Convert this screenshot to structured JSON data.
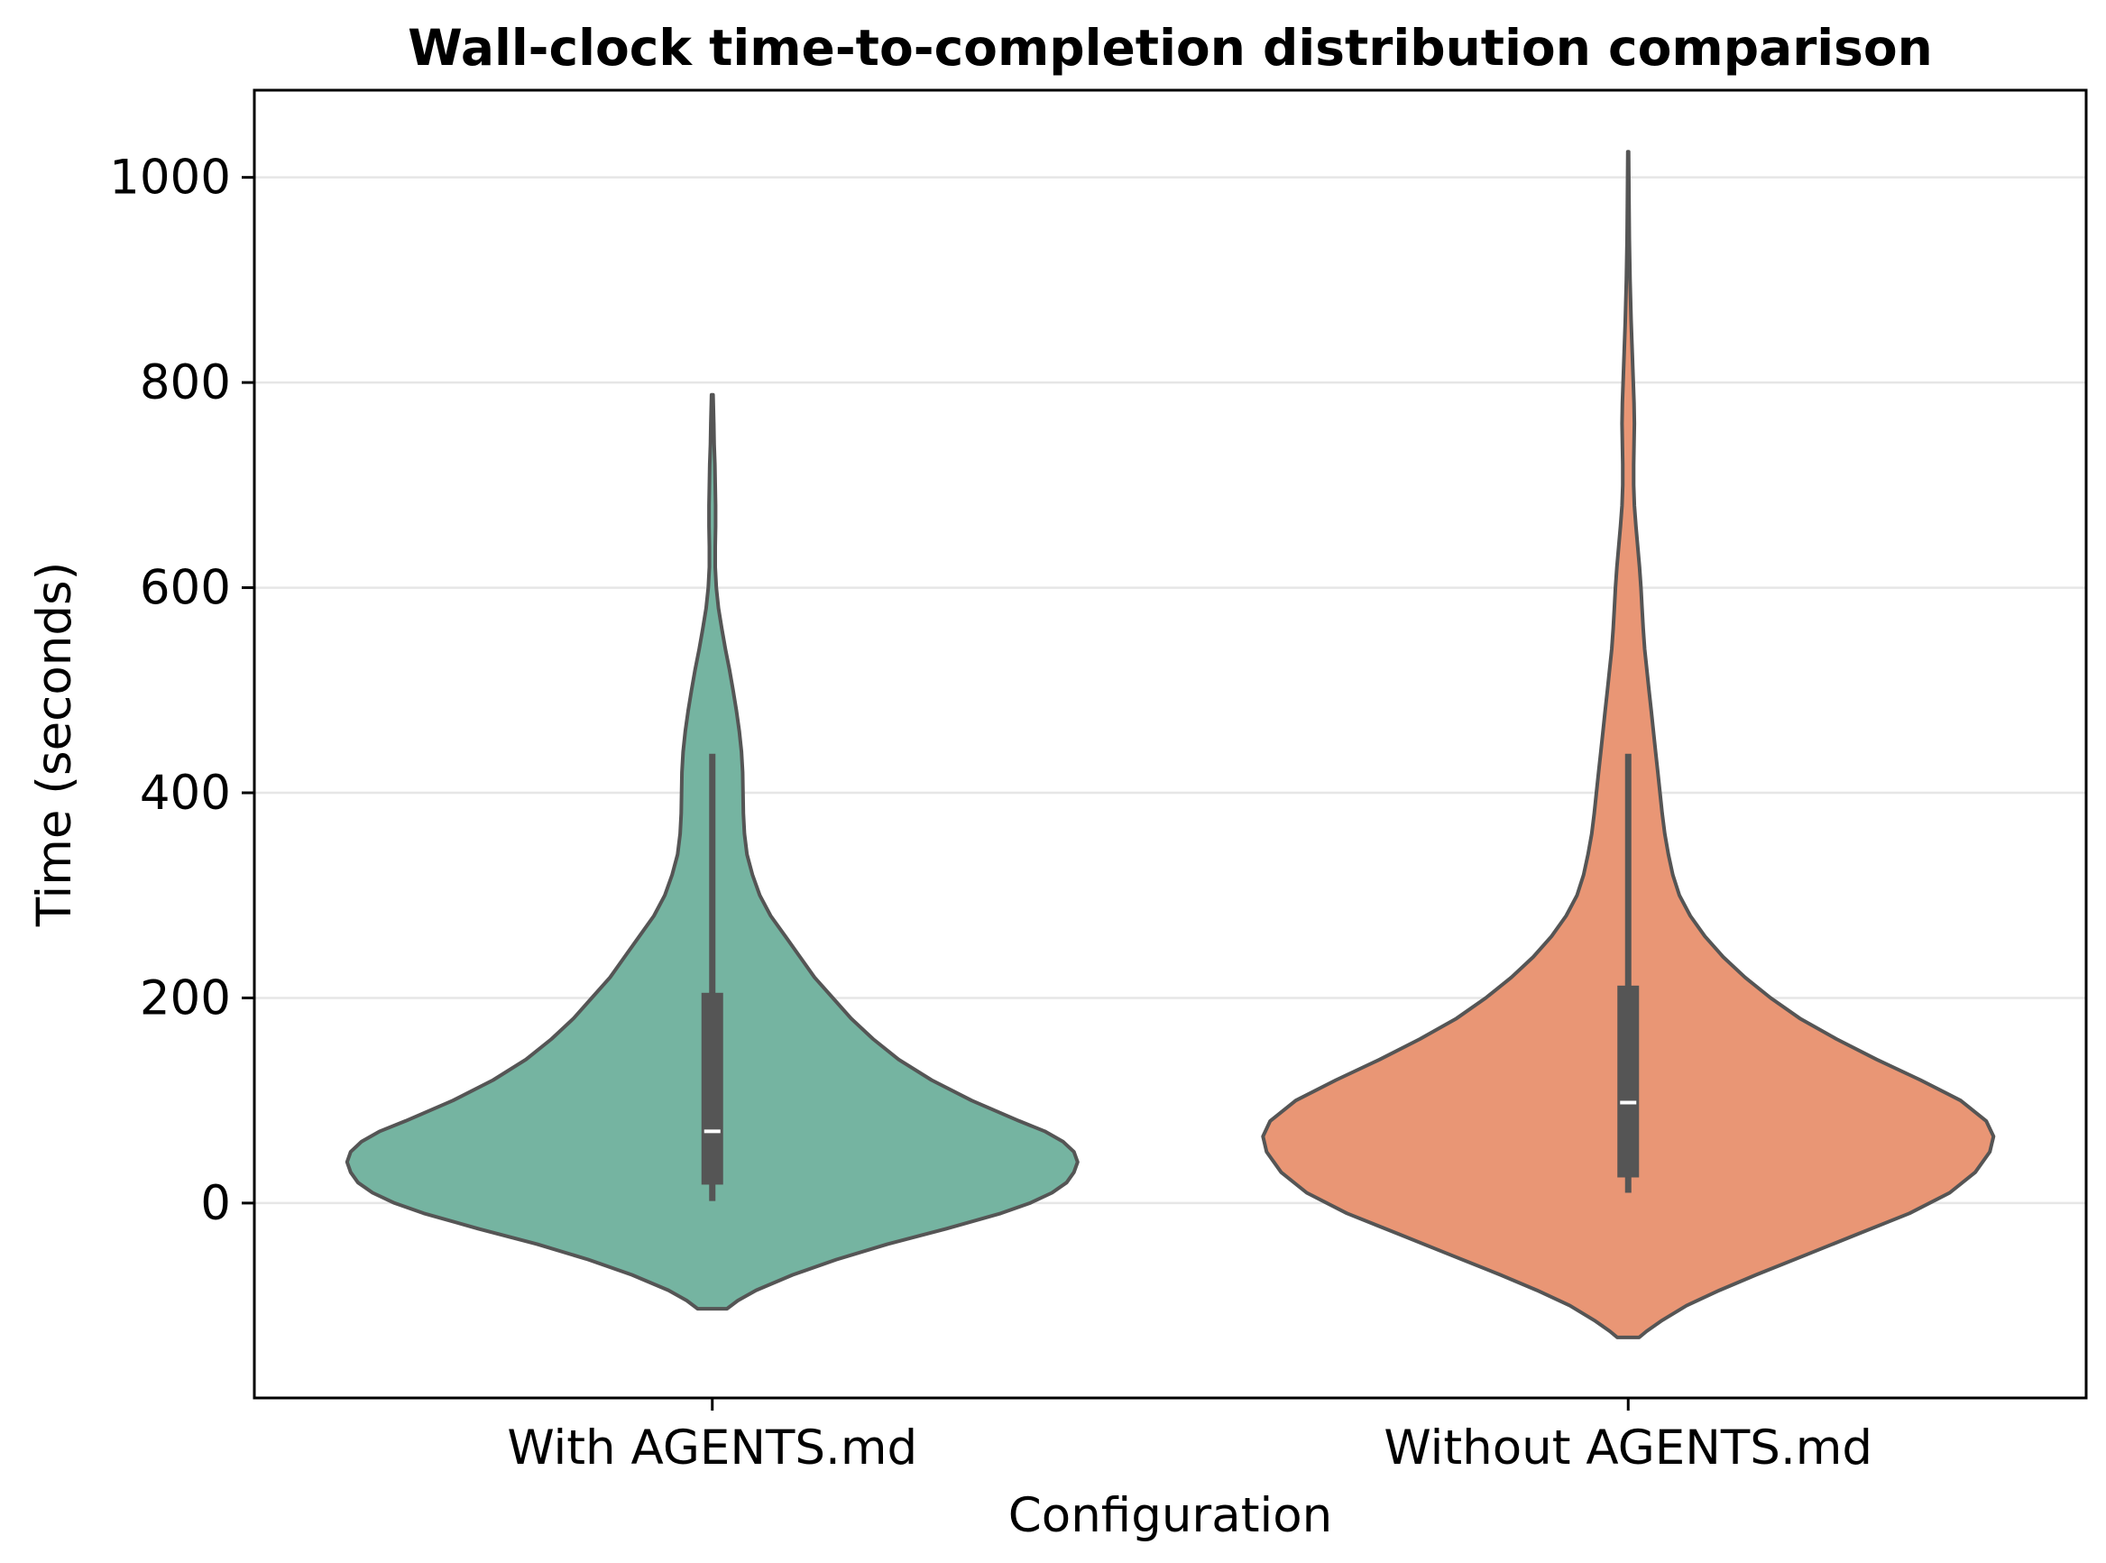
{
  "chart_data": {
    "type": "violin",
    "title": "Wall-clock time-to-completion distribution comparison",
    "xlabel": "Configuration",
    "ylabel": "Time (seconds)",
    "categories": [
      "With AGENTS.md",
      "Without AGENTS.md"
    ],
    "ylim": [
      -190,
      1085
    ],
    "yticks": [
      0,
      200,
      400,
      600,
      800,
      1000
    ],
    "grid": "horizontal",
    "legend": "none",
    "violins": [
      {
        "category": "With AGENTS.md",
        "color": "#75b4a1",
        "edge_color": "#555555",
        "density_profile": [
          [
            -103,
            0.04
          ],
          [
            -95,
            0.07
          ],
          [
            -85,
            0.12
          ],
          [
            -70,
            0.22
          ],
          [
            -55,
            0.34
          ],
          [
            -40,
            0.48
          ],
          [
            -25,
            0.64
          ],
          [
            -10,
            0.79
          ],
          [
            0,
            0.87
          ],
          [
            10,
            0.93
          ],
          [
            20,
            0.97
          ],
          [
            30,
            0.99
          ],
          [
            40,
            1.0
          ],
          [
            50,
            0.99
          ],
          [
            60,
            0.96
          ],
          [
            70,
            0.91
          ],
          [
            80,
            0.84
          ],
          [
            100,
            0.71
          ],
          [
            120,
            0.6
          ],
          [
            140,
            0.51
          ],
          [
            160,
            0.44
          ],
          [
            180,
            0.38
          ],
          [
            200,
            0.33
          ],
          [
            220,
            0.28
          ],
          [
            240,
            0.24
          ],
          [
            260,
            0.2
          ],
          [
            280,
            0.16
          ],
          [
            300,
            0.13
          ],
          [
            320,
            0.11
          ],
          [
            340,
            0.095
          ],
          [
            360,
            0.088
          ],
          [
            380,
            0.085
          ],
          [
            400,
            0.084
          ],
          [
            420,
            0.083
          ],
          [
            440,
            0.08
          ],
          [
            460,
            0.074
          ],
          [
            480,
            0.066
          ],
          [
            500,
            0.057
          ],
          [
            520,
            0.047
          ],
          [
            540,
            0.036
          ],
          [
            560,
            0.026
          ],
          [
            580,
            0.017
          ],
          [
            600,
            0.011
          ],
          [
            620,
            0.008
          ],
          [
            640,
            0.008
          ],
          [
            660,
            0.009
          ],
          [
            680,
            0.009
          ],
          [
            700,
            0.008
          ],
          [
            720,
            0.007
          ],
          [
            740,
            0.005
          ],
          [
            760,
            0.004
          ],
          [
            788,
            0.002
          ]
        ],
        "quartiles": [
          18,
          205
        ],
        "whiskers": [
          2,
          438
        ],
        "median": 70
      },
      {
        "category": "Without AGENTS.md",
        "color": "#e99675",
        "edge_color": "#555555",
        "density_profile": [
          [
            -131,
            0.03
          ],
          [
            -125,
            0.05
          ],
          [
            -115,
            0.09
          ],
          [
            -100,
            0.16
          ],
          [
            -85,
            0.25
          ],
          [
            -70,
            0.35
          ],
          [
            -50,
            0.49
          ],
          [
            -30,
            0.63
          ],
          [
            -10,
            0.77
          ],
          [
            10,
            0.88
          ],
          [
            30,
            0.95
          ],
          [
            50,
            0.99
          ],
          [
            65,
            1.0
          ],
          [
            80,
            0.98
          ],
          [
            100,
            0.91
          ],
          [
            120,
            0.8
          ],
          [
            140,
            0.68
          ],
          [
            160,
            0.57
          ],
          [
            180,
            0.47
          ],
          [
            200,
            0.39
          ],
          [
            220,
            0.32
          ],
          [
            240,
            0.26
          ],
          [
            260,
            0.21
          ],
          [
            280,
            0.17
          ],
          [
            300,
            0.14
          ],
          [
            320,
            0.122
          ],
          [
            340,
            0.11
          ],
          [
            360,
            0.1
          ],
          [
            380,
            0.093
          ],
          [
            400,
            0.087
          ],
          [
            420,
            0.081
          ],
          [
            440,
            0.075
          ],
          [
            460,
            0.069
          ],
          [
            480,
            0.063
          ],
          [
            500,
            0.057
          ],
          [
            520,
            0.051
          ],
          [
            540,
            0.045
          ],
          [
            560,
            0.041
          ],
          [
            580,
            0.038
          ],
          [
            600,
            0.035
          ],
          [
            620,
            0.031
          ],
          [
            640,
            0.026
          ],
          [
            660,
            0.021
          ],
          [
            680,
            0.017
          ],
          [
            700,
            0.015
          ],
          [
            720,
            0.015
          ],
          [
            740,
            0.016
          ],
          [
            760,
            0.017
          ],
          [
            780,
            0.016
          ],
          [
            800,
            0.014
          ],
          [
            830,
            0.011
          ],
          [
            860,
            0.008
          ],
          [
            900,
            0.005
          ],
          [
            940,
            0.003
          ],
          [
            980,
            0.002
          ],
          [
            1025,
            0.001
          ]
        ],
        "quartiles": [
          25,
          212
        ],
        "whiskers": [
          10,
          438
        ],
        "median": 98
      }
    ]
  }
}
